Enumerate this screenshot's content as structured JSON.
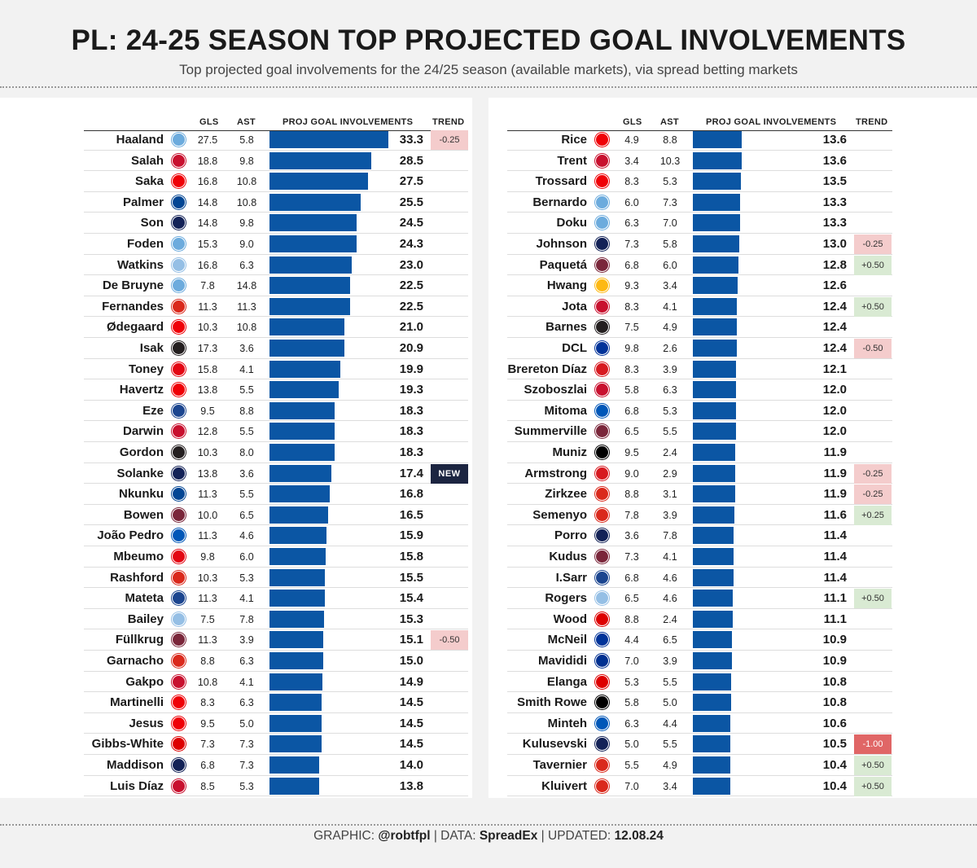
{
  "header": {
    "title": "PL: 24-25 SEASON TOP PROJECTED GOAL INVOLVEMENTS",
    "subtitle": "Top projected goal involvements for the 24/25 season (available markets), via spread betting markets"
  },
  "columns": {
    "gls": "GLS",
    "ast": "AST",
    "proj": "PROJ GOAL INVOLVEMENTS",
    "trend": "TREND"
  },
  "colors": {
    "bar": "#0b56a4",
    "trend_up": "#d9ead3",
    "trend_down": "#f4cccc",
    "trend_strong_down": "#e06666",
    "trend_new": "#1c2541",
    "man_city": "#6cabdd",
    "liverpool": "#c8102e",
    "arsenal": "#ef0107",
    "chelsea": "#034694",
    "tottenham": "#132257",
    "aston_villa": "#95bfe5",
    "man_utd": "#da291c",
    "newcastle": "#241f20",
    "brentford": "#e30613",
    "crystal_palace": "#1b458f",
    "west_ham": "#7a263a",
    "brighton": "#0057b8",
    "nottm_forest": "#dd0000",
    "wolves": "#fdb913",
    "everton": "#003399",
    "southampton": "#d71920",
    "fulham": "#000000",
    "bournemouth": "#da291c",
    "ipswich": "#0044a9",
    "leicester": "#003090"
  },
  "chart_data": {
    "type": "bar",
    "title": "PL: 24-25 SEASON TOP PROJECTED GOAL INVOLVEMENTS",
    "xlim": [
      0,
      33.3
    ],
    "players": [
      {
        "name": "Haaland",
        "team": "man_city",
        "gls": "27.5",
        "ast": "5.8",
        "proj": 33.3,
        "proj_label": "33.3",
        "trend": "-0.25",
        "trend_type": "down"
      },
      {
        "name": "Salah",
        "team": "liverpool",
        "gls": "18.8",
        "ast": "9.8",
        "proj": 28.5,
        "proj_label": "28.5",
        "trend": "",
        "trend_type": ""
      },
      {
        "name": "Saka",
        "team": "arsenal",
        "gls": "16.8",
        "ast": "10.8",
        "proj": 27.5,
        "proj_label": "27.5",
        "trend": "",
        "trend_type": ""
      },
      {
        "name": "Palmer",
        "team": "chelsea",
        "gls": "14.8",
        "ast": "10.8",
        "proj": 25.5,
        "proj_label": "25.5",
        "trend": "",
        "trend_type": ""
      },
      {
        "name": "Son",
        "team": "tottenham",
        "gls": "14.8",
        "ast": "9.8",
        "proj": 24.5,
        "proj_label": "24.5",
        "trend": "",
        "trend_type": ""
      },
      {
        "name": "Foden",
        "team": "man_city",
        "gls": "15.3",
        "ast": "9.0",
        "proj": 24.3,
        "proj_label": "24.3",
        "trend": "",
        "trend_type": ""
      },
      {
        "name": "Watkins",
        "team": "aston_villa",
        "gls": "16.8",
        "ast": "6.3",
        "proj": 23.0,
        "proj_label": "23.0",
        "trend": "",
        "trend_type": ""
      },
      {
        "name": "De Bruyne",
        "team": "man_city",
        "gls": "7.8",
        "ast": "14.8",
        "proj": 22.5,
        "proj_label": "22.5",
        "trend": "",
        "trend_type": ""
      },
      {
        "name": "Fernandes",
        "team": "man_utd",
        "gls": "11.3",
        "ast": "11.3",
        "proj": 22.5,
        "proj_label": "22.5",
        "trend": "",
        "trend_type": ""
      },
      {
        "name": "Ødegaard",
        "team": "arsenal",
        "gls": "10.3",
        "ast": "10.8",
        "proj": 21.0,
        "proj_label": "21.0",
        "trend": "",
        "trend_type": ""
      },
      {
        "name": "Isak",
        "team": "newcastle",
        "gls": "17.3",
        "ast": "3.6",
        "proj": 20.9,
        "proj_label": "20.9",
        "trend": "",
        "trend_type": ""
      },
      {
        "name": "Toney",
        "team": "brentford",
        "gls": "15.8",
        "ast": "4.1",
        "proj": 19.9,
        "proj_label": "19.9",
        "trend": "",
        "trend_type": ""
      },
      {
        "name": "Havertz",
        "team": "arsenal",
        "gls": "13.8",
        "ast": "5.5",
        "proj": 19.3,
        "proj_label": "19.3",
        "trend": "",
        "trend_type": ""
      },
      {
        "name": "Eze",
        "team": "crystal_palace",
        "gls": "9.5",
        "ast": "8.8",
        "proj": 18.3,
        "proj_label": "18.3",
        "trend": "",
        "trend_type": ""
      },
      {
        "name": "Darwin",
        "team": "liverpool",
        "gls": "12.8",
        "ast": "5.5",
        "proj": 18.3,
        "proj_label": "18.3",
        "trend": "",
        "trend_type": ""
      },
      {
        "name": "Gordon",
        "team": "newcastle",
        "gls": "10.3",
        "ast": "8.0",
        "proj": 18.3,
        "proj_label": "18.3",
        "trend": "",
        "trend_type": ""
      },
      {
        "name": "Solanke",
        "team": "tottenham",
        "gls": "13.8",
        "ast": "3.6",
        "proj": 17.4,
        "proj_label": "17.4",
        "trend": "NEW",
        "trend_type": "new"
      },
      {
        "name": "Nkunku",
        "team": "chelsea",
        "gls": "11.3",
        "ast": "5.5",
        "proj": 16.8,
        "proj_label": "16.8",
        "trend": "",
        "trend_type": ""
      },
      {
        "name": "Bowen",
        "team": "west_ham",
        "gls": "10.0",
        "ast": "6.5",
        "proj": 16.5,
        "proj_label": "16.5",
        "trend": "",
        "trend_type": ""
      },
      {
        "name": "João Pedro",
        "team": "brighton",
        "gls": "11.3",
        "ast": "4.6",
        "proj": 15.9,
        "proj_label": "15.9",
        "trend": "",
        "trend_type": ""
      },
      {
        "name": "Mbeumo",
        "team": "brentford",
        "gls": "9.8",
        "ast": "6.0",
        "proj": 15.8,
        "proj_label": "15.8",
        "trend": "",
        "trend_type": ""
      },
      {
        "name": "Rashford",
        "team": "man_utd",
        "gls": "10.3",
        "ast": "5.3",
        "proj": 15.5,
        "proj_label": "15.5",
        "trend": "",
        "trend_type": ""
      },
      {
        "name": "Mateta",
        "team": "crystal_palace",
        "gls": "11.3",
        "ast": "4.1",
        "proj": 15.4,
        "proj_label": "15.4",
        "trend": "",
        "trend_type": ""
      },
      {
        "name": "Bailey",
        "team": "aston_villa",
        "gls": "7.5",
        "ast": "7.8",
        "proj": 15.3,
        "proj_label": "15.3",
        "trend": "",
        "trend_type": ""
      },
      {
        "name": "Füllkrug",
        "team": "west_ham",
        "gls": "11.3",
        "ast": "3.9",
        "proj": 15.1,
        "proj_label": "15.1",
        "trend": "-0.50",
        "trend_type": "down"
      },
      {
        "name": "Garnacho",
        "team": "man_utd",
        "gls": "8.8",
        "ast": "6.3",
        "proj": 15.0,
        "proj_label": "15.0",
        "trend": "",
        "trend_type": ""
      },
      {
        "name": "Gakpo",
        "team": "liverpool",
        "gls": "10.8",
        "ast": "4.1",
        "proj": 14.9,
        "proj_label": "14.9",
        "trend": "",
        "trend_type": ""
      },
      {
        "name": "Martinelli",
        "team": "arsenal",
        "gls": "8.3",
        "ast": "6.3",
        "proj": 14.5,
        "proj_label": "14.5",
        "trend": "",
        "trend_type": ""
      },
      {
        "name": "Jesus",
        "team": "arsenal",
        "gls": "9.5",
        "ast": "5.0",
        "proj": 14.5,
        "proj_label": "14.5",
        "trend": "",
        "trend_type": ""
      },
      {
        "name": "Gibbs-White",
        "team": "nottm_forest",
        "gls": "7.3",
        "ast": "7.3",
        "proj": 14.5,
        "proj_label": "14.5",
        "trend": "",
        "trend_type": ""
      },
      {
        "name": "Maddison",
        "team": "tottenham",
        "gls": "6.8",
        "ast": "7.3",
        "proj": 14.0,
        "proj_label": "14.0",
        "trend": "",
        "trend_type": ""
      },
      {
        "name": "Luis Díaz",
        "team": "liverpool",
        "gls": "8.5",
        "ast": "5.3",
        "proj": 13.8,
        "proj_label": "13.8",
        "trend": "",
        "trend_type": ""
      },
      {
        "name": "Rice",
        "team": "arsenal",
        "gls": "4.9",
        "ast": "8.8",
        "proj": 13.6,
        "proj_label": "13.6",
        "trend": "",
        "trend_type": ""
      },
      {
        "name": "Trent",
        "team": "liverpool",
        "gls": "3.4",
        "ast": "10.3",
        "proj": 13.6,
        "proj_label": "13.6",
        "trend": "",
        "trend_type": ""
      },
      {
        "name": "Trossard",
        "team": "arsenal",
        "gls": "8.3",
        "ast": "5.3",
        "proj": 13.5,
        "proj_label": "13.5",
        "trend": "",
        "trend_type": ""
      },
      {
        "name": "Bernardo",
        "team": "man_city",
        "gls": "6.0",
        "ast": "7.3",
        "proj": 13.3,
        "proj_label": "13.3",
        "trend": "",
        "trend_type": ""
      },
      {
        "name": "Doku",
        "team": "man_city",
        "gls": "6.3",
        "ast": "7.0",
        "proj": 13.3,
        "proj_label": "13.3",
        "trend": "",
        "trend_type": ""
      },
      {
        "name": "Johnson",
        "team": "tottenham",
        "gls": "7.3",
        "ast": "5.8",
        "proj": 13.0,
        "proj_label": "13.0",
        "trend": "-0.25",
        "trend_type": "down"
      },
      {
        "name": "Paquetá",
        "team": "west_ham",
        "gls": "6.8",
        "ast": "6.0",
        "proj": 12.8,
        "proj_label": "12.8",
        "trend": "+0.50",
        "trend_type": "up"
      },
      {
        "name": "Hwang",
        "team": "wolves",
        "gls": "9.3",
        "ast": "3.4",
        "proj": 12.6,
        "proj_label": "12.6",
        "trend": "",
        "trend_type": ""
      },
      {
        "name": "Jota",
        "team": "liverpool",
        "gls": "8.3",
        "ast": "4.1",
        "proj": 12.4,
        "proj_label": "12.4",
        "trend": "+0.50",
        "trend_type": "up"
      },
      {
        "name": "Barnes",
        "team": "newcastle",
        "gls": "7.5",
        "ast": "4.9",
        "proj": 12.4,
        "proj_label": "12.4",
        "trend": "",
        "trend_type": ""
      },
      {
        "name": "DCL",
        "team": "everton",
        "gls": "9.8",
        "ast": "2.6",
        "proj": 12.4,
        "proj_label": "12.4",
        "trend": "-0.50",
        "trend_type": "down"
      },
      {
        "name": "Brereton Díaz",
        "team": "southampton",
        "gls": "8.3",
        "ast": "3.9",
        "proj": 12.1,
        "proj_label": "12.1",
        "trend": "",
        "trend_type": ""
      },
      {
        "name": "Szoboszlai",
        "team": "liverpool",
        "gls": "5.8",
        "ast": "6.3",
        "proj": 12.0,
        "proj_label": "12.0",
        "trend": "",
        "trend_type": ""
      },
      {
        "name": "Mitoma",
        "team": "brighton",
        "gls": "6.8",
        "ast": "5.3",
        "proj": 12.0,
        "proj_label": "12.0",
        "trend": "",
        "trend_type": ""
      },
      {
        "name": "Summerville",
        "team": "west_ham",
        "gls": "6.5",
        "ast": "5.5",
        "proj": 12.0,
        "proj_label": "12.0",
        "trend": "",
        "trend_type": ""
      },
      {
        "name": "Muniz",
        "team": "fulham",
        "gls": "9.5",
        "ast": "2.4",
        "proj": 11.9,
        "proj_label": "11.9",
        "trend": "",
        "trend_type": ""
      },
      {
        "name": "Armstrong",
        "team": "southampton",
        "gls": "9.0",
        "ast": "2.9",
        "proj": 11.9,
        "proj_label": "11.9",
        "trend": "-0.25",
        "trend_type": "down"
      },
      {
        "name": "Zirkzee",
        "team": "man_utd",
        "gls": "8.8",
        "ast": "3.1",
        "proj": 11.9,
        "proj_label": "11.9",
        "trend": "-0.25",
        "trend_type": "down"
      },
      {
        "name": "Semenyo",
        "team": "bournemouth",
        "gls": "7.8",
        "ast": "3.9",
        "proj": 11.6,
        "proj_label": "11.6",
        "trend": "+0.25",
        "trend_type": "up"
      },
      {
        "name": "Porro",
        "team": "tottenham",
        "gls": "3.6",
        "ast": "7.8",
        "proj": 11.4,
        "proj_label": "11.4",
        "trend": "",
        "trend_type": ""
      },
      {
        "name": "Kudus",
        "team": "west_ham",
        "gls": "7.3",
        "ast": "4.1",
        "proj": 11.4,
        "proj_label": "11.4",
        "trend": "",
        "trend_type": ""
      },
      {
        "name": "I.Sarr",
        "team": "crystal_palace",
        "gls": "6.8",
        "ast": "4.6",
        "proj": 11.4,
        "proj_label": "11.4",
        "trend": "",
        "trend_type": ""
      },
      {
        "name": "Rogers",
        "team": "aston_villa",
        "gls": "6.5",
        "ast": "4.6",
        "proj": 11.1,
        "proj_label": "11.1",
        "trend": "+0.50",
        "trend_type": "up"
      },
      {
        "name": "Wood",
        "team": "nottm_forest",
        "gls": "8.8",
        "ast": "2.4",
        "proj": 11.1,
        "proj_label": "11.1",
        "trend": "",
        "trend_type": ""
      },
      {
        "name": "McNeil",
        "team": "everton",
        "gls": "4.4",
        "ast": "6.5",
        "proj": 10.9,
        "proj_label": "10.9",
        "trend": "",
        "trend_type": ""
      },
      {
        "name": "Mavididi",
        "team": "leicester",
        "gls": "7.0",
        "ast": "3.9",
        "proj": 10.9,
        "proj_label": "10.9",
        "trend": "",
        "trend_type": ""
      },
      {
        "name": "Elanga",
        "team": "nottm_forest",
        "gls": "5.3",
        "ast": "5.5",
        "proj": 10.8,
        "proj_label": "10.8",
        "trend": "",
        "trend_type": ""
      },
      {
        "name": "Smith Rowe",
        "team": "fulham",
        "gls": "5.8",
        "ast": "5.0",
        "proj": 10.8,
        "proj_label": "10.8",
        "trend": "",
        "trend_type": ""
      },
      {
        "name": "Minteh",
        "team": "brighton",
        "gls": "6.3",
        "ast": "4.4",
        "proj": 10.6,
        "proj_label": "10.6",
        "trend": "",
        "trend_type": ""
      },
      {
        "name": "Kulusevski",
        "team": "tottenham",
        "gls": "5.0",
        "ast": "5.5",
        "proj": 10.5,
        "proj_label": "10.5",
        "trend": "-1.00",
        "trend_type": "strong_down"
      },
      {
        "name": "Tavernier",
        "team": "bournemouth",
        "gls": "5.5",
        "ast": "4.9",
        "proj": 10.4,
        "proj_label": "10.4",
        "trend": "+0.50",
        "trend_type": "up"
      },
      {
        "name": "Kluivert",
        "team": "bournemouth",
        "gls": "7.0",
        "ast": "3.4",
        "proj": 10.4,
        "proj_label": "10.4",
        "trend": "+0.50",
        "trend_type": "up"
      }
    ]
  },
  "footer": {
    "graphic_label": "GRAPHIC:",
    "graphic_value": "@robtfpl",
    "data_label": "DATA:",
    "data_value": "SpreadEx",
    "updated_label": "UPDATED:",
    "updated_value": "12.08.24",
    "divider": "|"
  }
}
